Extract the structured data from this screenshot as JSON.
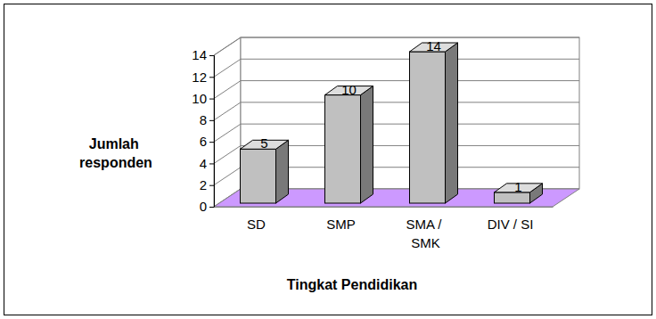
{
  "chart_data": {
    "type": "bar",
    "x_label": "Tingkat Pendidikan",
    "y_label": "Jumlah responden",
    "categories": [
      "SD",
      "SMP",
      "SMA / SMK",
      "DIV / SI"
    ],
    "values": [
      5,
      10,
      14,
      1
    ],
    "color": "#c0c0c0",
    "ylim": [
      0,
      14
    ],
    "yticks": [
      0,
      2,
      4,
      6,
      8,
      10,
      12,
      14
    ],
    "grid": true,
    "data_labels": true
  }
}
